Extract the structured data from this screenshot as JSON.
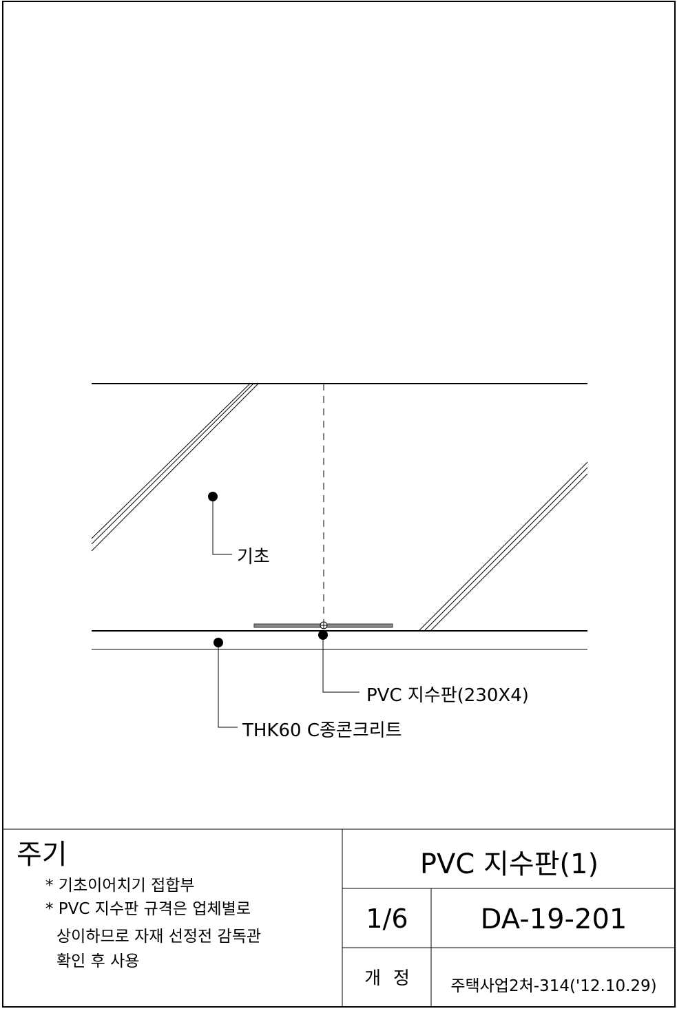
{
  "drawing": {
    "labels": {
      "foundation": "기초",
      "waterstop": "PVC 지수판(230X4)",
      "concrete": "THK60 C종콘크리트"
    }
  },
  "notes": {
    "title": "주기",
    "items": [
      "* 기초이어치기 접합부",
      "* PVC 지수판 규격은 업체별로",
      "상이하므로 자재 선정전 감독관",
      "확인 후 사용"
    ]
  },
  "title_block": {
    "title": "PVC 지수판(1)",
    "sheet": "1/6",
    "drawing_number": "DA-19-201",
    "revision_label": "개정",
    "revision_value": "주택사업2처-314('12.10.29)"
  }
}
